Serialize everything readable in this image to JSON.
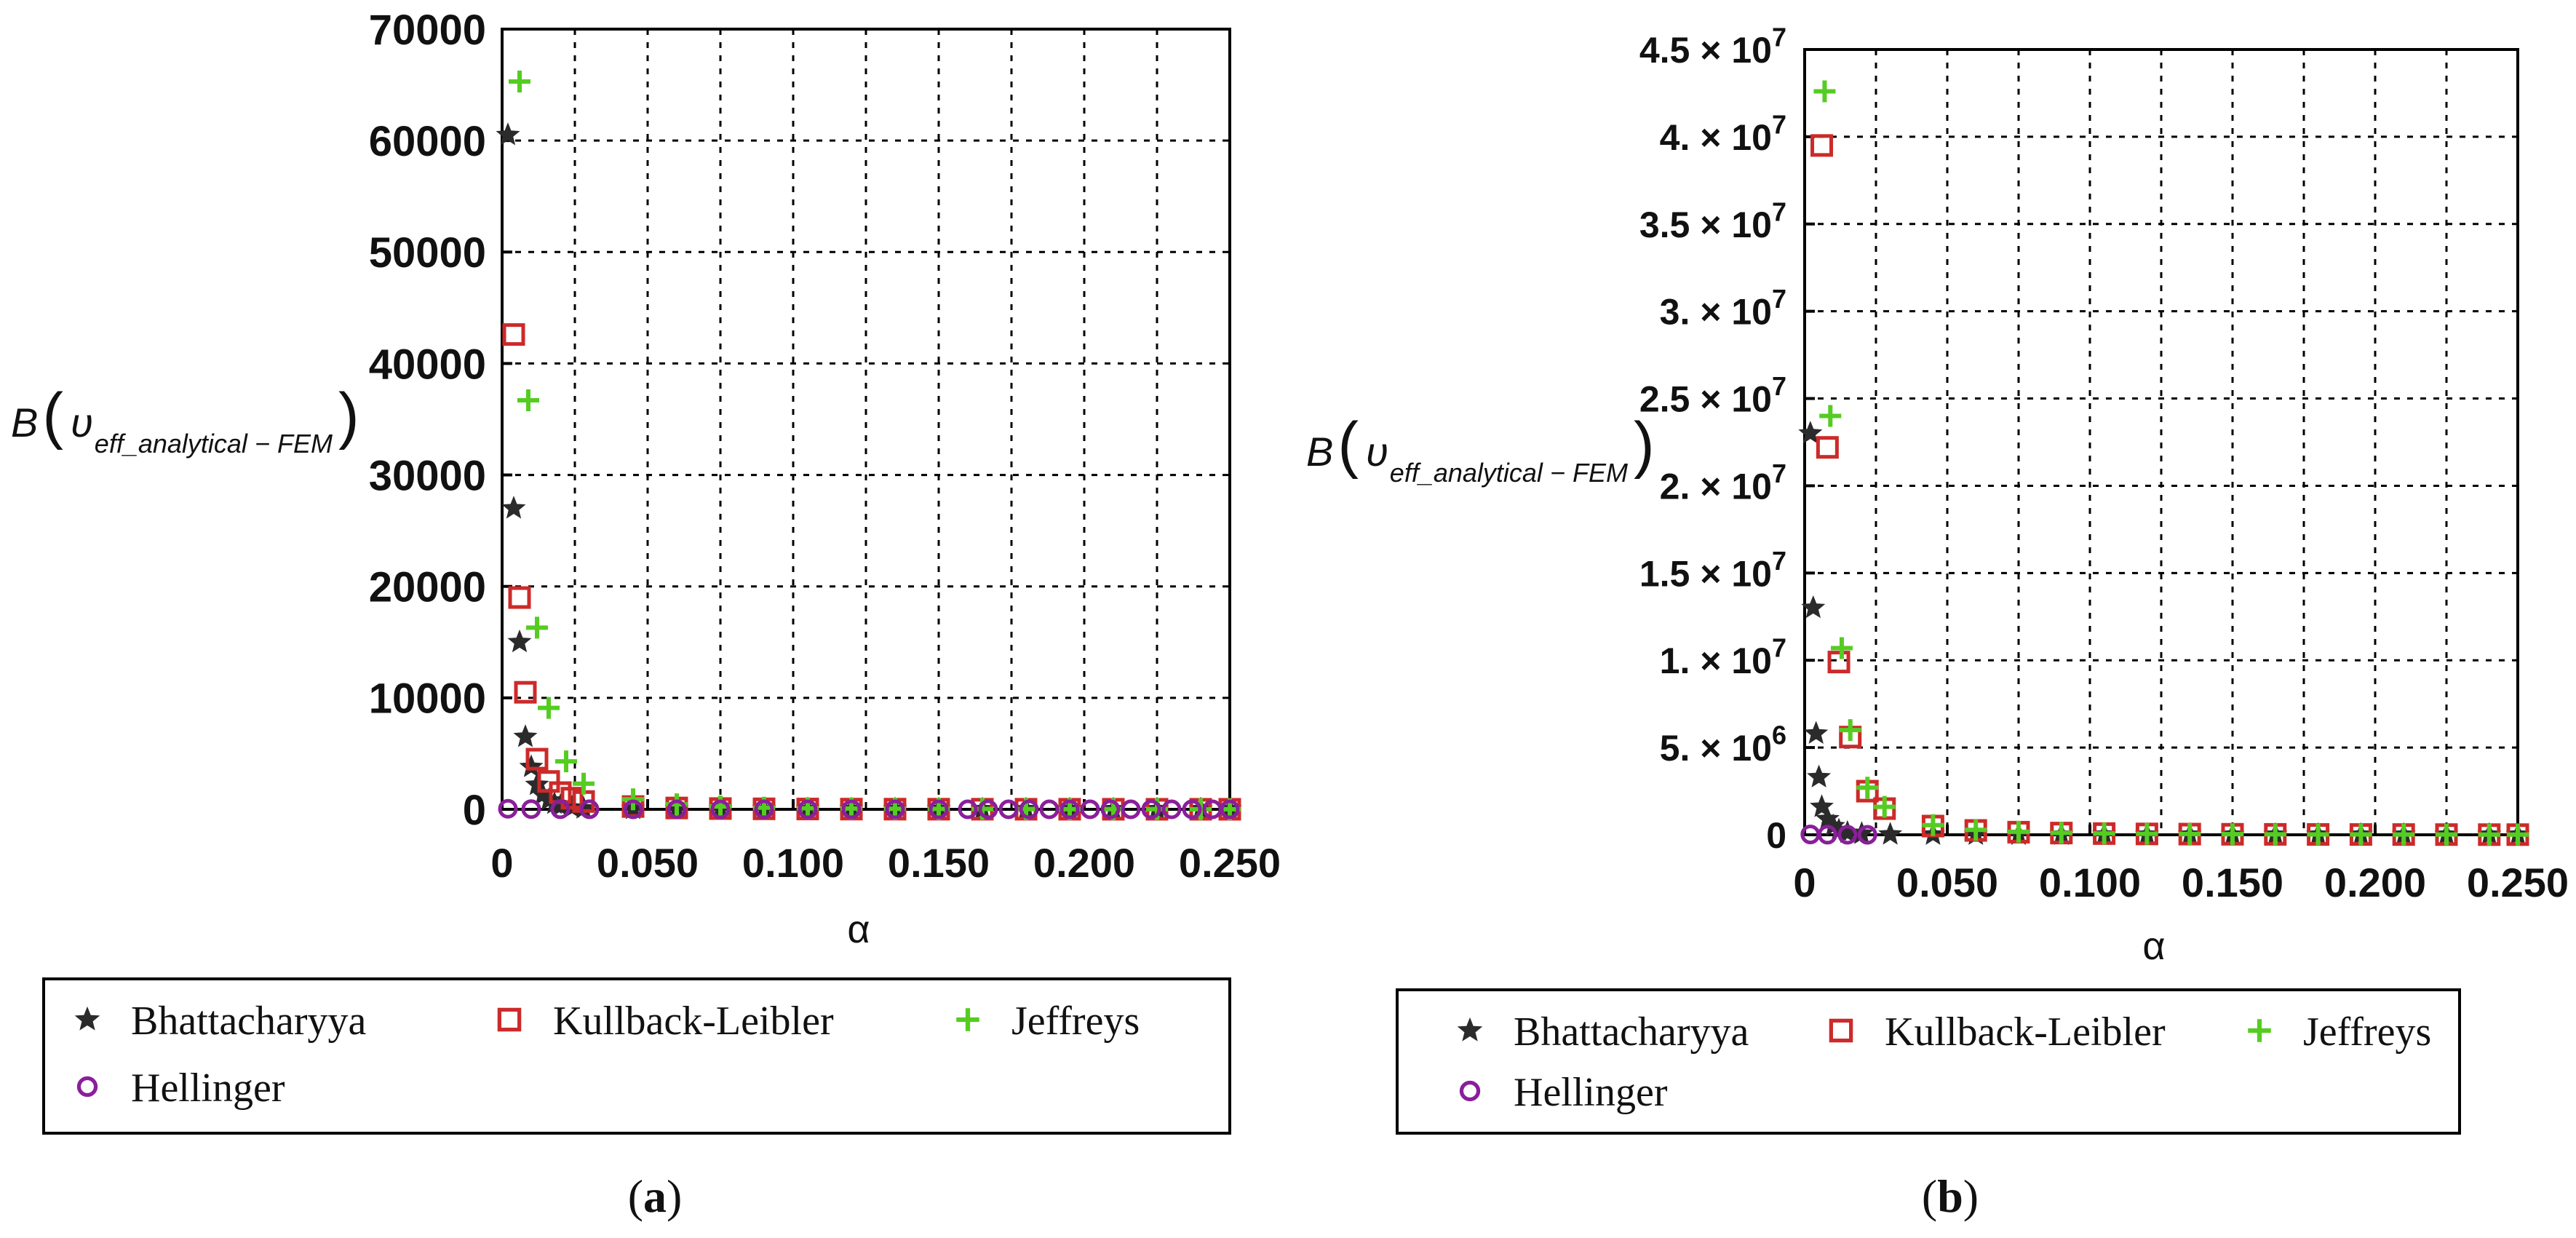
{
  "chart_data": [
    {
      "type": "scatter",
      "panel_label_text": "a",
      "xlabel": "α",
      "ylabel_main": "B",
      "ylabel_nu": "υ",
      "ylabel_sub": "eff_analytical − FEM",
      "xlim": [
        0,
        0.25
      ],
      "ylim": [
        0,
        70000
      ],
      "x_ticks": [
        "0",
        "0.050",
        "0.100",
        "0.150",
        "0.200",
        "0.250"
      ],
      "x_tick_values": [
        0,
        0.05,
        0.1,
        0.15,
        0.2,
        0.25
      ],
      "y_ticks": [
        "0",
        "10000",
        "20000",
        "30000",
        "40000",
        "50000",
        "60000",
        "70000"
      ],
      "y_tick_values": [
        0,
        10000,
        20000,
        30000,
        40000,
        50000,
        60000,
        70000
      ],
      "grid": true,
      "legend_position": "bottom",
      "series": [
        {
          "name": "Bhattacharyya",
          "marker": "star",
          "color": "#2b2b2b",
          "x": [
            0.002,
            0.004,
            0.006,
            0.008,
            0.01,
            0.012,
            0.014,
            0.016,
            0.018,
            0.02,
            0.024,
            0.028,
            0.045,
            0.06,
            0.075,
            0.09,
            0.105,
            0.12,
            0.135,
            0.15,
            0.165,
            0.18,
            0.195,
            0.21,
            0.225,
            0.24,
            0.25
          ],
          "y": [
            60500,
            27000,
            15000,
            6500,
            3800,
            2200,
            1300,
            800,
            500,
            300,
            150,
            80,
            30,
            15,
            10,
            8,
            6,
            5,
            4,
            3,
            3,
            2,
            2,
            2,
            2,
            2,
            2
          ]
        },
        {
          "name": "Kullback-Leibler",
          "marker": "square",
          "color": "#cc2a2a",
          "x": [
            0.004,
            0.006,
            0.008,
            0.012,
            0.016,
            0.02,
            0.024,
            0.028,
            0.045,
            0.06,
            0.075,
            0.09,
            0.105,
            0.12,
            0.135,
            0.15,
            0.165,
            0.18,
            0.195,
            0.21,
            0.225,
            0.24,
            0.25
          ],
          "y": [
            42600,
            19000,
            10500,
            4500,
            2500,
            1500,
            1000,
            700,
            250,
            120,
            70,
            45,
            30,
            20,
            15,
            12,
            10,
            8,
            7,
            6,
            5,
            4,
            4
          ]
        },
        {
          "name": "Jeffreys",
          "marker": "plus",
          "color": "#55cc22",
          "x": [
            0.006,
            0.009,
            0.012,
            0.016,
            0.022,
            0.028,
            0.045,
            0.06,
            0.075,
            0.09,
            0.105,
            0.12,
            0.135,
            0.15,
            0.165,
            0.18,
            0.195,
            0.21,
            0.225,
            0.24,
            0.25
          ],
          "y": [
            65300,
            36700,
            16300,
            9100,
            4300,
            2300,
            900,
            450,
            250,
            150,
            100,
            70,
            50,
            40,
            30,
            25,
            20,
            18,
            15,
            12,
            10
          ]
        },
        {
          "name": "Hellinger",
          "marker": "circle",
          "color": "#8a1f9a",
          "x": [
            0.002,
            0.01,
            0.02,
            0.03,
            0.045,
            0.06,
            0.075,
            0.09,
            0.105,
            0.12,
            0.135,
            0.15,
            0.16,
            0.167,
            0.174,
            0.181,
            0.188,
            0.195,
            0.202,
            0.209,
            0.216,
            0.223,
            0.23,
            0.237,
            0.244,
            0.25
          ],
          "y": [
            50,
            20,
            10,
            5,
            3,
            2,
            2,
            1,
            1,
            1,
            1,
            1,
            1,
            1,
            1,
            1,
            1,
            1,
            1,
            1,
            1,
            1,
            1,
            1,
            1,
            1
          ]
        }
      ]
    },
    {
      "type": "scatter",
      "panel_label_text": "b",
      "xlabel": "α",
      "ylabel_main": "B",
      "ylabel_nu": "υ",
      "ylabel_sub": "eff_analytical − FEM",
      "xlim": [
        0,
        0.25
      ],
      "ylim": [
        0,
        45000000
      ],
      "x_ticks": [
        "0",
        "0.050",
        "0.100",
        "0.150",
        "0.200",
        "0.250"
      ],
      "x_tick_values": [
        0,
        0.05,
        0.1,
        0.15,
        0.2,
        0.25
      ],
      "y_ticks": [
        {
          "mant": "0",
          "exp": ""
        },
        {
          "mant": "5. × 10",
          "exp": "6"
        },
        {
          "mant": "1. × 10",
          "exp": "7"
        },
        {
          "mant": "1.5 × 10",
          "exp": "7"
        },
        {
          "mant": "2. × 10",
          "exp": "7"
        },
        {
          "mant": "2.5 × 10",
          "exp": "7"
        },
        {
          "mant": "3. × 10",
          "exp": "7"
        },
        {
          "mant": "3.5 × 10",
          "exp": "7"
        },
        {
          "mant": "4. × 10",
          "exp": "7"
        },
        {
          "mant": "4.5 × 10",
          "exp": "7"
        }
      ],
      "y_tick_values": [
        0,
        5000000,
        10000000,
        15000000,
        20000000,
        25000000,
        30000000,
        35000000,
        40000000,
        45000000
      ],
      "grid": true,
      "legend_position": "bottom",
      "series": [
        {
          "name": "Bhattacharyya",
          "marker": "star",
          "color": "#2b2b2b",
          "x": [
            0.002,
            0.003,
            0.004,
            0.005,
            0.006,
            0.008,
            0.01,
            0.012,
            0.015,
            0.02,
            0.03,
            0.045,
            0.06,
            0.075,
            0.09,
            0.105,
            0.12,
            0.135,
            0.15,
            0.165,
            0.18,
            0.195,
            0.21,
            0.225,
            0.24,
            0.25
          ],
          "y": [
            23000000,
            13000000,
            5800000,
            3300000,
            1600000,
            900000,
            500000,
            250000,
            120000,
            60000,
            20000,
            8000,
            4000,
            2500,
            1500,
            1000,
            800,
            600,
            500,
            400,
            300,
            300,
            250,
            200,
            200,
            200
          ]
        },
        {
          "name": "Kullback-Leibler",
          "marker": "square",
          "color": "#cc2a2a",
          "x": [
            0.006,
            0.008,
            0.012,
            0.016,
            0.022,
            0.028,
            0.045,
            0.06,
            0.075,
            0.09,
            0.105,
            0.12,
            0.135,
            0.15,
            0.165,
            0.18,
            0.195,
            0.21,
            0.225,
            0.24,
            0.25
          ],
          "y": [
            39500000,
            22200000,
            9900000,
            5600000,
            2500000,
            1500000,
            500000,
            250000,
            150000,
            100000,
            70000,
            50000,
            40000,
            30000,
            25000,
            20000,
            18000,
            15000,
            12000,
            10000,
            10000
          ]
        },
        {
          "name": "Jeffreys",
          "marker": "plus",
          "color": "#55cc22",
          "x": [
            0.007,
            0.009,
            0.013,
            0.016,
            0.022,
            0.028,
            0.045,
            0.06,
            0.075,
            0.09,
            0.105,
            0.12,
            0.135,
            0.15,
            0.165,
            0.18,
            0.195,
            0.21,
            0.225,
            0.24,
            0.25
          ],
          "y": [
            42600000,
            24000000,
            10700000,
            6000000,
            2700000,
            1600000,
            550000,
            280000,
            170000,
            110000,
            80000,
            55000,
            45000,
            35000,
            28000,
            22000,
            20000,
            17000,
            14000,
            12000,
            11000
          ]
        },
        {
          "name": "Hellinger",
          "marker": "circle",
          "color": "#8a1f9a",
          "x": [
            0.002,
            0.008,
            0.015,
            0.022
          ],
          "y": [
            20000,
            8000,
            4000,
            2000
          ]
        }
      ]
    }
  ]
}
